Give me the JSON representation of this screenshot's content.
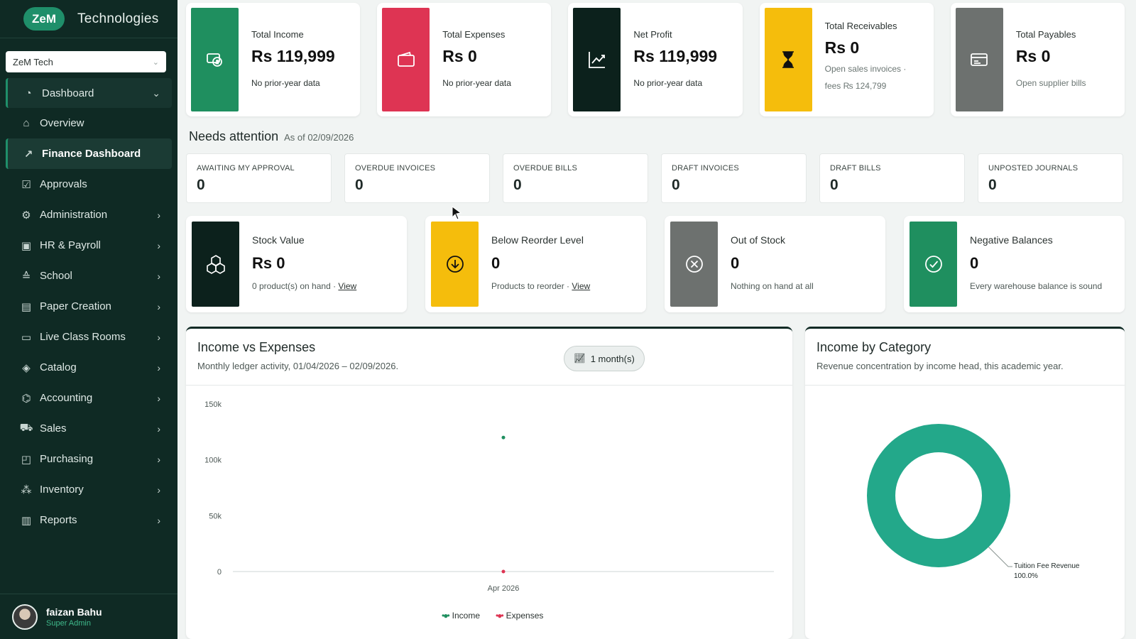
{
  "sidebar": {
    "logo_text": "ZeM",
    "brand_name": "Technologies",
    "org_select_value": "ZeM Tech",
    "items": [
      {
        "label": "Dashboard",
        "icon": "dashboard-icon"
      },
      {
        "label": "Overview",
        "icon": "home-icon"
      },
      {
        "label": "Finance Dashboard",
        "icon": "trend-icon"
      },
      {
        "label": "Approvals",
        "icon": "checkbox-icon"
      },
      {
        "label": "Administration",
        "icon": "gear-icon"
      },
      {
        "label": "HR & Payroll",
        "icon": "badge-icon"
      },
      {
        "label": "School",
        "icon": "graduation-cap-icon"
      },
      {
        "label": "Paper Creation",
        "icon": "document-icon"
      },
      {
        "label": "Live Class Rooms",
        "icon": "video-icon"
      },
      {
        "label": "Catalog",
        "icon": "box-icon"
      },
      {
        "label": "Accounting",
        "icon": "bank-icon"
      },
      {
        "label": "Sales",
        "icon": "cart-icon"
      },
      {
        "label": "Purchasing",
        "icon": "bag-icon"
      },
      {
        "label": "Inventory",
        "icon": "boxes-icon"
      },
      {
        "label": "Reports",
        "icon": "bar-chart-icon"
      }
    ],
    "user": {
      "name": "faizan Bahu",
      "role": "Super Admin"
    }
  },
  "kpis": [
    {
      "title": "Total Income",
      "currency": "Rs",
      "amount": "119,999",
      "note": "No prior-year data",
      "color": "#1f8f5f",
      "icon": "money-icon"
    },
    {
      "title": "Total Expenses",
      "currency": "Rs",
      "amount": "0",
      "note": "No prior-year data",
      "color": "#de3453",
      "icon": "wallet-icon"
    },
    {
      "title": "Net Profit",
      "currency": "Rs",
      "amount": "119,999",
      "note": "No prior-year data",
      "color": "#0c211c",
      "icon": "trend-up-icon"
    },
    {
      "title": "Total Receivables",
      "currency": "Rs",
      "amount": "0",
      "note_line1": "Open sales invoices ·",
      "note_line2": "fees ₨ 124,799",
      "color": "#f5bd0c",
      "icon": "hourglass-icon"
    },
    {
      "title": "Total Payables",
      "currency": "Rs",
      "amount": "0",
      "note": "Open supplier bills",
      "color": "#6d716f",
      "icon": "card-icon"
    }
  ],
  "needs_attention": {
    "title": "Needs attention",
    "as_of": "As of 02/09/2026",
    "items": [
      {
        "label": "AWAITING MY APPROVAL",
        "value": "0"
      },
      {
        "label": "OVERDUE INVOICES",
        "value": "0"
      },
      {
        "label": "OVERDUE BILLS",
        "value": "0"
      },
      {
        "label": "DRAFT INVOICES",
        "value": "0"
      },
      {
        "label": "DRAFT BILLS",
        "value": "0"
      },
      {
        "label": "UNPOSTED JOURNALS",
        "value": "0"
      }
    ]
  },
  "inventory": [
    {
      "title": "Stock Value",
      "currency": "Rs",
      "value": "0",
      "note": "0 product(s) on hand ·",
      "link": "View",
      "color": "#0c211c",
      "icon": "cubes-icon"
    },
    {
      "title": "Below Reorder Level",
      "value": "0",
      "note": "Products to reorder ·",
      "link": "View",
      "color": "#f5bd0c",
      "icon": "arrow-down-circle-icon"
    },
    {
      "title": "Out of Stock",
      "value": "0",
      "note": "Nothing on hand at all",
      "color": "#6d716f",
      "icon": "x-circle-icon"
    },
    {
      "title": "Negative Balances",
      "value": "0",
      "note": "Every warehouse balance is sound",
      "color": "#1f8f5f",
      "icon": "check-circle-icon"
    }
  ],
  "income_expenses": {
    "title": "Income vs Expenses",
    "subtitle": "Monthly ledger activity, 01/04/2026 – 02/09/2026.",
    "range_label": "1 month(s)"
  },
  "income_category": {
    "title": "Income by Category",
    "subtitle": "Revenue concentration by income head, this academic year."
  },
  "chart_data": [
    {
      "type": "line",
      "title": "Income vs Expenses",
      "x": [
        "Apr 2026"
      ],
      "y_ticks": [
        "0",
        "50k",
        "100k",
        "150k"
      ],
      "ylim": [
        0,
        150000
      ],
      "series": [
        {
          "name": "Income",
          "values": [
            119999
          ],
          "color": "#1f8f5f"
        },
        {
          "name": "Expenses",
          "values": [
            0
          ],
          "color": "#de3453"
        }
      ],
      "legend": "bottom"
    },
    {
      "type": "pie",
      "title": "Income by Category",
      "slices": [
        {
          "label": "Tuition Fee Revenue",
          "percent_label": "100.0%",
          "value": 100
        }
      ],
      "color": "#23a88a"
    }
  ]
}
